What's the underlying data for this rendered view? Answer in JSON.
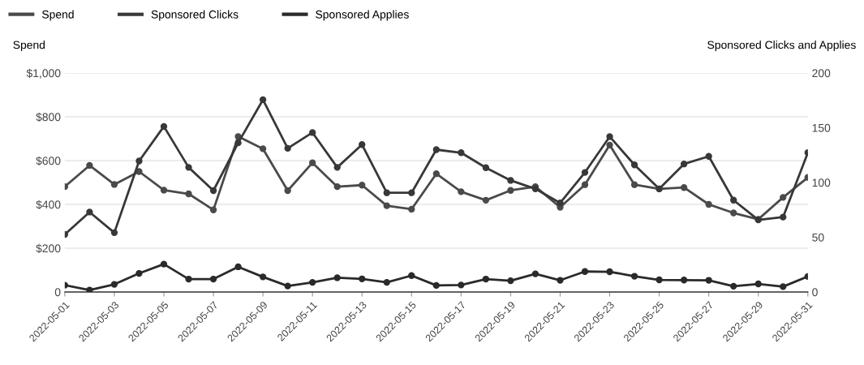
{
  "chart_data": {
    "type": "line",
    "ylabel": "Spend",
    "y2label": "Sponsored Clicks and Applies",
    "x": [
      "2022-05-01",
      "2022-05-02",
      "2022-05-03",
      "2022-05-04",
      "2022-05-05",
      "2022-05-06",
      "2022-05-07",
      "2022-05-08",
      "2022-05-09",
      "2022-05-10",
      "2022-05-11",
      "2022-05-12",
      "2022-05-13",
      "2022-05-14",
      "2022-05-15",
      "2022-05-16",
      "2022-05-17",
      "2022-05-18",
      "2022-05-19",
      "2022-05-20",
      "2022-05-21",
      "2022-05-22",
      "2022-05-23",
      "2022-05-24",
      "2022-05-25",
      "2022-05-26",
      "2022-05-27",
      "2022-05-28",
      "2022-05-29",
      "2022-05-30",
      "2022-05-31"
    ],
    "series": [
      {
        "name": "Spend",
        "color": "#4a4a4a",
        "values": [
          481,
          578,
          491,
          550,
          465,
          448,
          375,
          710,
          654,
          463,
          590,
          481,
          488,
          394,
          378,
          540,
          458,
          419,
          464,
          481,
          387,
          490,
          671,
          490,
          471,
          477,
          400,
          361,
          332,
          432,
          523
        ]
      },
      {
        "name": "Sponsored Clicks",
        "color": "#383838",
        "axis": "y2",
        "values": [
          52.6,
          73,
          54.2,
          119.6,
          151.2,
          113.8,
          92.6,
          136.2,
          175.6,
          131.2,
          145.6,
          113.8,
          134.6,
          90.6,
          90.6,
          130,
          127.2,
          113.5,
          101.9,
          94.2,
          81.3,
          109.2,
          141.9,
          116.1,
          94.2,
          116.9,
          123.9,
          83.9,
          65.8,
          68.4,
          127.2
        ]
      },
      {
        "name": "Sponsored Applies",
        "color": "#2a2a2a",
        "axis": "y2",
        "values": [
          6.2,
          1.8,
          7,
          17,
          25.5,
          11.8,
          11.8,
          23,
          13.8,
          5.5,
          8.8,
          13,
          12,
          8.8,
          15,
          6,
          6.4,
          11.8,
          10.3,
          16.6,
          10.7,
          18.7,
          18.5,
          14.4,
          11.1,
          10.9,
          10.7,
          5.3,
          7.4,
          4.9,
          14.2
        ]
      }
    ],
    "xlim": [
      "2022-05-01",
      "2022-05-31"
    ],
    "xticks": [
      "2022-05-01",
      "2022-05-03",
      "2022-05-05",
      "2022-05-07",
      "2022-05-09",
      "2022-05-11",
      "2022-05-13",
      "2022-05-15",
      "2022-05-17",
      "2022-05-19",
      "2022-05-21",
      "2022-05-23",
      "2022-05-25",
      "2022-05-27",
      "2022-05-29",
      "2022-05-31"
    ],
    "ylim": [
      0,
      1000
    ],
    "yticks": [
      {
        "value": 0,
        "label": "0"
      },
      {
        "value": 200,
        "label": "$200"
      },
      {
        "value": 400,
        "label": "$400"
      },
      {
        "value": 600,
        "label": "$600"
      },
      {
        "value": 800,
        "label": "$800"
      },
      {
        "value": 1000,
        "label": "$1,000"
      }
    ],
    "y2lim": [
      0,
      200
    ],
    "y2ticks": [
      0,
      50,
      100,
      150,
      200
    ],
    "grid": "y",
    "legend": "top left",
    "marker": "circle",
    "line_style": "solid"
  }
}
